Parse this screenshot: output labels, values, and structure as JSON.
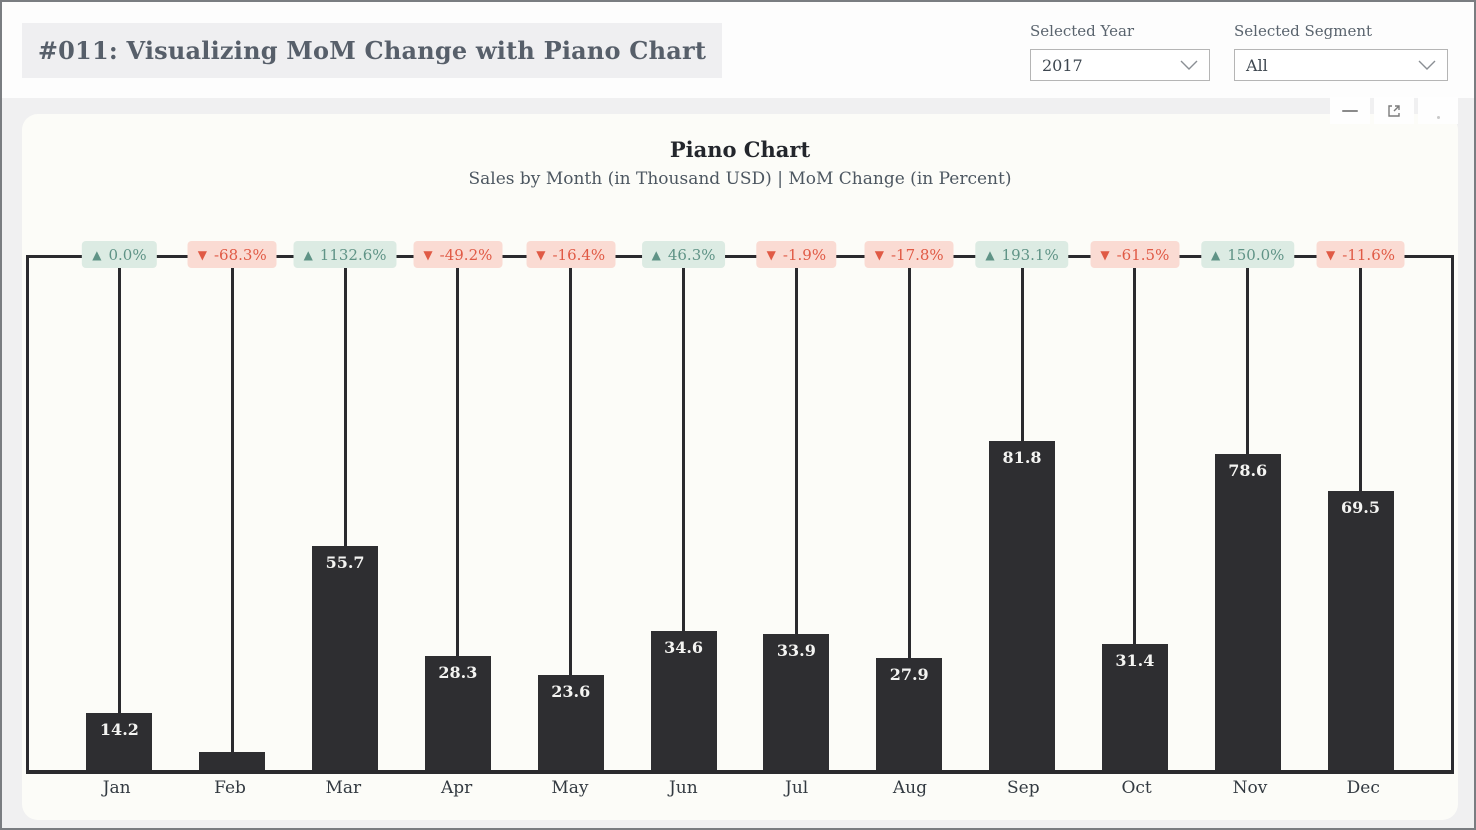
{
  "page": {
    "title": "#011: Visualizing MoM Change with Piano Chart"
  },
  "slicers": {
    "year": {
      "label": "Selected Year",
      "value": "2017"
    },
    "segment": {
      "label": "Selected Segment",
      "value": "All"
    }
  },
  "visual_header": {
    "icons": [
      "minimize-icon",
      "focus-mode-icon",
      "more-options-icon"
    ]
  },
  "chart_data": {
    "type": "bar",
    "title": "Piano Chart",
    "subtitle": "Sales by Month (in Thousand USD) | MoM Change (in Percent)",
    "categories": [
      "Jan",
      "Feb",
      "Mar",
      "Apr",
      "May",
      "Jun",
      "Jul",
      "Aug",
      "Sep",
      "Oct",
      "Nov",
      "Dec"
    ],
    "series": [
      {
        "name": "Sales (Thousand USD)",
        "values": [
          14.2,
          4.5,
          55.7,
          28.3,
          23.6,
          34.6,
          33.9,
          27.9,
          81.8,
          31.4,
          78.6,
          69.5
        ]
      },
      {
        "name": "MoM Change (Percent)",
        "values": [
          0.0,
          -68.3,
          1132.6,
          -49.2,
          -16.4,
          46.3,
          -1.9,
          -17.8,
          193.1,
          -61.5,
          150.0,
          -11.6
        ]
      }
    ],
    "bar_labels": [
      "14.2",
      "",
      "55.7",
      "28.3",
      "23.6",
      "34.6",
      "33.9",
      "27.9",
      "81.8",
      "31.4",
      "78.6",
      "69.5"
    ],
    "mom_labels": [
      "0.0%",
      "-68.3%",
      "1132.6%",
      "-49.2%",
      "-16.4%",
      "46.3%",
      "-1.9%",
      "-17.8%",
      "193.1%",
      "-61.5%",
      "150.0%",
      "-11.6%"
    ],
    "mom_directions": [
      "up",
      "down",
      "up",
      "down",
      "down",
      "up",
      "down",
      "down",
      "up",
      "down",
      "up",
      "down"
    ],
    "markers": {
      "up_glyph": "▲",
      "down_glyph": "▼"
    },
    "ylim": [
      0,
      90
    ],
    "grid": false,
    "legend": "none"
  },
  "colors": {
    "bar": "#2e2e31",
    "stem": "#2a2a2e",
    "positive_bg": "#dcebe3",
    "positive_text": "#5f9386",
    "negative_bg": "#fadbd3",
    "negative_text": "#e05a45"
  }
}
